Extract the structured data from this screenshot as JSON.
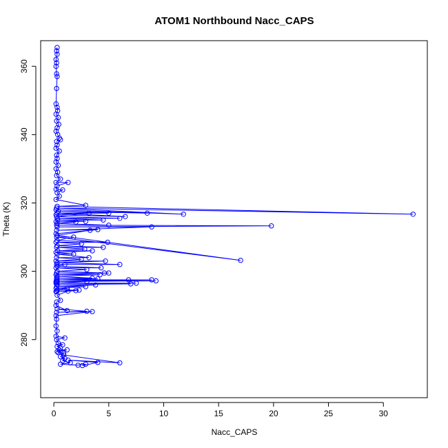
{
  "chart_data": {
    "type": "line",
    "title": "ATOM1 Northbound Nacc_CAPS",
    "xlabel": "Nacc_CAPS",
    "ylabel": "Theta (K)",
    "xlim": [
      -1.2,
      34.0
    ],
    "ylim": [
      263.0,
      367.5
    ],
    "x_ticks": [
      0,
      5,
      10,
      15,
      20,
      25,
      30
    ],
    "y_ticks": [
      280,
      300,
      320,
      340,
      360
    ],
    "grid": false,
    "marker": "open-circle",
    "colors": {
      "series": "#0000ff",
      "axes": "#000000",
      "background": "#ffffff"
    },
    "series": [
      {
        "points": [
          [
            0.3,
            365.5
          ],
          [
            0.25,
            364.5
          ],
          [
            0.3,
            363.5
          ],
          [
            0.2,
            362.0
          ],
          [
            0.25,
            361.0
          ],
          [
            0.2,
            360.0
          ],
          [
            0.25,
            357.8
          ],
          [
            0.3,
            357.0
          ],
          [
            0.25,
            353.5
          ],
          [
            0.2,
            349.0
          ],
          [
            0.3,
            348.0
          ],
          [
            0.35,
            347.0
          ],
          [
            0.2,
            346.0
          ],
          [
            0.4,
            345.0
          ],
          [
            0.25,
            344.0
          ],
          [
            0.45,
            343.0
          ],
          [
            0.3,
            342.0
          ],
          [
            0.2,
            341.0
          ],
          [
            0.35,
            340.0
          ],
          [
            0.5,
            339.0
          ],
          [
            0.25,
            338.0
          ],
          [
            0.6,
            338.5
          ],
          [
            0.3,
            337.0
          ],
          [
            0.2,
            336.0
          ],
          [
            0.5,
            335.2
          ],
          [
            0.25,
            334.0
          ],
          [
            0.3,
            333.0
          ],
          [
            0.2,
            332.0
          ],
          [
            0.4,
            331.0
          ],
          [
            0.2,
            330.0
          ],
          [
            0.35,
            329.0
          ],
          [
            0.25,
            328.0
          ],
          [
            0.6,
            327.0
          ],
          [
            0.2,
            326.0
          ],
          [
            1.3,
            326.0
          ],
          [
            0.3,
            325.0
          ],
          [
            0.2,
            324.0
          ],
          [
            0.8,
            323.8
          ],
          [
            0.3,
            323.0
          ],
          [
            0.5,
            322.0
          ],
          [
            0.2,
            321.0
          ],
          [
            2.9,
            319.3
          ],
          [
            0.3,
            319.0
          ],
          [
            32.7,
            316.7
          ],
          [
            0.25,
            318.5
          ],
          [
            11.8,
            316.7
          ],
          [
            0.2,
            318.0
          ],
          [
            8.5,
            317.0
          ],
          [
            0.4,
            317.5
          ],
          [
            5.0,
            317.0
          ],
          [
            0.3,
            317.0
          ],
          [
            6.5,
            316.0
          ],
          [
            0.2,
            316.5
          ],
          [
            3.2,
            317.0
          ],
          [
            0.25,
            316.0
          ],
          [
            6.0,
            315.5
          ],
          [
            0.3,
            315.5
          ],
          [
            4.5,
            315.0
          ],
          [
            0.35,
            315.0
          ],
          [
            2.9,
            314.6
          ],
          [
            0.2,
            314.5
          ],
          [
            2.0,
            314.4
          ],
          [
            0.3,
            314.0
          ],
          [
            5.0,
            313.5
          ],
          [
            0.25,
            313.5
          ],
          [
            19.8,
            313.3
          ],
          [
            0.3,
            313.0
          ],
          [
            8.9,
            313.0
          ],
          [
            0.25,
            312.0
          ],
          [
            4.0,
            312.2
          ],
          [
            0.2,
            311.0
          ],
          [
            3.3,
            312.0
          ],
          [
            0.3,
            310.5
          ],
          [
            17.0,
            303.2
          ],
          [
            0.25,
            310.0
          ],
          [
            1.8,
            310.0
          ],
          [
            0.3,
            309.0
          ],
          [
            4.9,
            308.5
          ],
          [
            0.2,
            308.5
          ],
          [
            2.5,
            308.0
          ],
          [
            0.3,
            307.5
          ],
          [
            4.5,
            307.0
          ],
          [
            0.25,
            307.0
          ],
          [
            2.8,
            306.5
          ],
          [
            0.35,
            306.0
          ],
          [
            3.5,
            306.0
          ],
          [
            0.2,
            305.5
          ],
          [
            1.8,
            305.0
          ],
          [
            0.3,
            305.0
          ],
          [
            3.2,
            304.0
          ],
          [
            0.25,
            304.0
          ],
          [
            2.5,
            303.5
          ],
          [
            0.2,
            303.0
          ],
          [
            4.7,
            303.0
          ],
          [
            0.3,
            302.5
          ],
          [
            6.0,
            302.0
          ],
          [
            0.25,
            302.0
          ],
          [
            1.0,
            302.0
          ],
          [
            0.3,
            301.5
          ],
          [
            4.3,
            301.0
          ],
          [
            0.2,
            301.0
          ],
          [
            3.0,
            300.5
          ],
          [
            0.3,
            300.0
          ],
          [
            4.6,
            299.5
          ],
          [
            0.25,
            299.5
          ],
          [
            5.0,
            299.5
          ],
          [
            0.2,
            299.0
          ],
          [
            4.2,
            299.0
          ],
          [
            0.3,
            298.5
          ],
          [
            3.5,
            298.0
          ],
          [
            0.25,
            298.0
          ],
          [
            4.0,
            297.8
          ],
          [
            0.3,
            297.5
          ],
          [
            8.9,
            297.5
          ],
          [
            0.25,
            297.5
          ],
          [
            9.3,
            297.2
          ],
          [
            0.2,
            297.0
          ],
          [
            6.8,
            297.5
          ],
          [
            0.3,
            297.0
          ],
          [
            3.0,
            297.0
          ],
          [
            0.25,
            296.5
          ],
          [
            7.5,
            296.5
          ],
          [
            0.2,
            296.5
          ],
          [
            7.0,
            296.3
          ],
          [
            0.3,
            296.0
          ],
          [
            3.8,
            296.0
          ],
          [
            0.25,
            295.5
          ],
          [
            2.9,
            295.5
          ],
          [
            0.2,
            295.0
          ],
          [
            1.2,
            295.0
          ],
          [
            0.3,
            294.5
          ],
          [
            2.3,
            294.5
          ],
          [
            0.25,
            294.0
          ],
          [
            2.0,
            294.3
          ],
          [
            0.2,
            294.0
          ],
          [
            1.3,
            294.2
          ],
          [
            0.3,
            293.0
          ],
          [
            0.6,
            291.5
          ],
          [
            0.25,
            291.0
          ],
          [
            0.2,
            290.0
          ],
          [
            1.2,
            288.5
          ],
          [
            0.3,
            289.0
          ],
          [
            3.0,
            288.3
          ],
          [
            0.25,
            288.0
          ],
          [
            3.5,
            288.2
          ],
          [
            0.2,
            287.0
          ],
          [
            0.25,
            286.0
          ],
          [
            0.2,
            284.0
          ],
          [
            0.3,
            282.5
          ],
          [
            0.2,
            281.0
          ],
          [
            1.0,
            280.5
          ],
          [
            0.25,
            280.0
          ],
          [
            0.4,
            279.0
          ],
          [
            0.8,
            278.5
          ],
          [
            0.3,
            278.0
          ],
          [
            0.6,
            277.5
          ],
          [
            0.5,
            277.0
          ],
          [
            1.2,
            277.0
          ],
          [
            0.3,
            276.5
          ],
          [
            0.9,
            276.0
          ],
          [
            0.6,
            275.0
          ],
          [
            1.0,
            274.5
          ],
          [
            0.8,
            273.8
          ],
          [
            1.5,
            273.2
          ],
          [
            0.6,
            272.8
          ],
          [
            2.2,
            272.5
          ],
          [
            2.9,
            272.8
          ],
          [
            2.6,
            272.4
          ],
          [
            4.0,
            273.3
          ],
          [
            1.3,
            274.0
          ],
          [
            6.0,
            273.2
          ],
          [
            0.9,
            275.5
          ],
          [
            0.4,
            276.2
          ]
        ]
      }
    ]
  }
}
